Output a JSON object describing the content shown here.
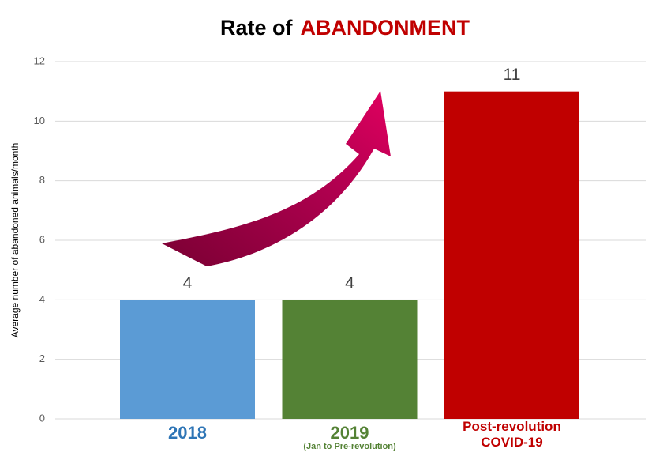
{
  "chart_data": {
    "type": "bar",
    "title": [
      "Rate of",
      "ABANDONMENT"
    ],
    "title_colors": [
      "#000000",
      "#c00000"
    ],
    "y_label": "Average number of abandoned animals/month",
    "categories": [
      "2018",
      "2019",
      "Post-revolution COVID-19"
    ],
    "category_notes": [
      null,
      "(Jan to Pre-revolution)",
      null
    ],
    "category_colors": [
      "#2e75b6",
      "#548235",
      "#c00000"
    ],
    "values": [
      4,
      4,
      11
    ],
    "colors": [
      "#5b9bd5",
      "#548235",
      "#c00000"
    ],
    "ylim": [
      0,
      12
    ],
    "yticks": [
      0,
      2,
      4,
      6,
      8,
      10,
      12
    ],
    "grid": true
  }
}
